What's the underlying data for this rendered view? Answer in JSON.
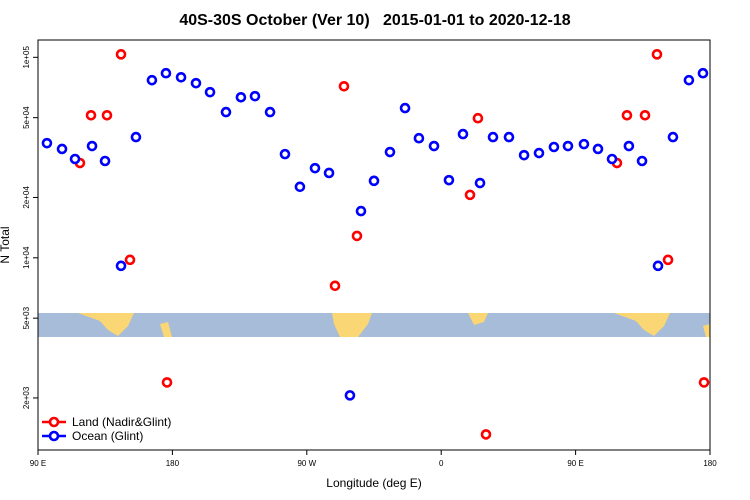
{
  "chart_data": {
    "type": "scatter",
    "title": "40S-30S October (Ver 10)   2015-01-01 to 2020-12-18",
    "xlabel": "Longitude (deg E)",
    "ylabel": "N Total",
    "ylog": true,
    "xlim": [
      90,
      540
    ],
    "ylim": [
      1100,
      122000
    ],
    "xticks": [
      {
        "value": 90,
        "label": "90 E"
      },
      {
        "value": 180,
        "label": "180"
      },
      {
        "value": 270,
        "label": "90 W"
      },
      {
        "value": 360,
        "label": "0"
      },
      {
        "value": 450,
        "label": "90 E"
      },
      {
        "value": 540,
        "label": "180"
      }
    ],
    "yticks": [
      {
        "value": 2000,
        "label": "2e+03"
      },
      {
        "value": 5000,
        "label": "5e+03"
      },
      {
        "value": 10000,
        "label": "1e+04"
      },
      {
        "value": 20000,
        "label": "2e+04"
      },
      {
        "value": 50000,
        "label": "5e+04"
      },
      {
        "value": 100000,
        "label": "1e+05"
      }
    ],
    "legend": "bottom-left",
    "series": [
      {
        "name": "Land (Nadir&Glint)",
        "color": "#ff0000",
        "x": [
          118.1,
          125.5,
          136.2,
          145.6,
          151.6,
          176.4,
          288.9,
          294.9,
          303.6,
          379.3,
          384.6,
          390.0,
          477.7,
          484.4,
          496.5,
          504.5,
          511.9,
          536.0
        ],
        "values": [
          29700,
          51400,
          51400,
          103500,
          9770,
          2390,
          7250,
          71700,
          12860,
          20600,
          49700,
          1316,
          29700,
          51400,
          51400,
          103500,
          9770,
          2390
        ]
      },
      {
        "name": "Ocean (Glint)",
        "color": "#0000ff",
        "x": [
          96.0,
          106.1,
          114.8,
          126.2,
          134.9,
          145.6,
          155.6,
          166.3,
          175.7,
          185.8,
          195.8,
          205.2,
          215.9,
          225.9,
          235.3,
          245.4,
          255.4,
          265.4,
          275.5,
          284.9,
          298.9,
          306.3,
          315.0,
          325.7,
          335.8,
          345.1,
          355.2,
          365.2,
          374.6,
          386.0,
          394.7,
          405.4,
          415.5,
          425.5,
          435.5,
          444.9,
          455.6,
          465.0,
          474.4,
          485.7,
          494.5,
          505.2,
          515.2,
          525.9,
          535.3
        ],
        "values": [
          37300,
          34900,
          31100,
          36100,
          30400,
          9120,
          40000,
          76900,
          83300,
          79500,
          74300,
          67000,
          53300,
          63200,
          64000,
          53300,
          32900,
          22600,
          28000,
          26500,
          2060,
          17100,
          24200,
          33700,
          55800,
          39500,
          36100,
          24400,
          41400,
          23600,
          40000,
          40000,
          32500,
          33300,
          35700,
          36100,
          36900,
          34900,
          31100,
          36100,
          30400,
          9120,
          40000,
          76900,
          83300
        ]
      }
    ]
  }
}
